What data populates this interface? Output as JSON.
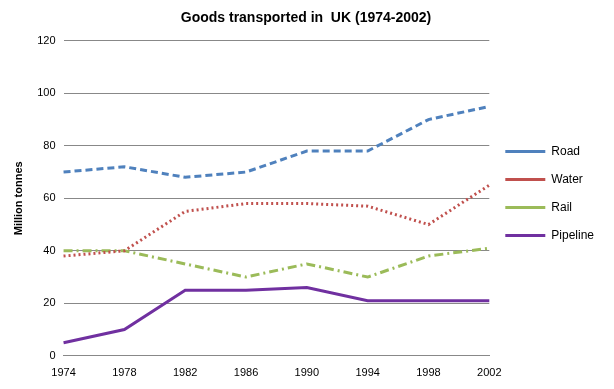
{
  "chart_data": {
    "type": "line",
    "title": "Goods transported in  UK (1974-2002)",
    "y_label": "Million tonnes",
    "categories": [
      "1974",
      "1978",
      "1982",
      "1986",
      "1990",
      "1994",
      "1998",
      "2002"
    ],
    "series": [
      {
        "name": "Road",
        "color": "#4f81bd",
        "line_style": "dashed",
        "values": [
          70,
          72,
          68,
          70,
          78,
          78,
          90,
          95
        ]
      },
      {
        "name": "Water",
        "color": "#c0504d",
        "line_style": "dotted",
        "values": [
          38,
          40,
          55,
          58,
          58,
          57,
          50,
          65
        ]
      },
      {
        "name": "Rail",
        "color": "#9bbb59",
        "line_style": "dashdot",
        "values": [
          40,
          40,
          35,
          30,
          35,
          30,
          38,
          41
        ]
      },
      {
        "name": "Pipeline",
        "color": "#7030a0",
        "line_style": "solid",
        "values": [
          5,
          10,
          25,
          25,
          26,
          21,
          21,
          21
        ]
      }
    ],
    "ylim": [
      0,
      120
    ],
    "yticks": [
      0,
      20,
      40,
      60,
      80,
      100,
      120
    ],
    "grid": true,
    "legend": "right"
  }
}
